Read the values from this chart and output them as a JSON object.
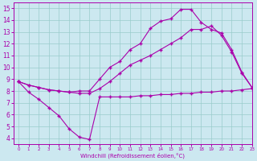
{
  "background_color": "#cce8f0",
  "line_color": "#aa00aa",
  "grid_color": "#99cccc",
  "xlabel": "Windchill (Refroidissement éolien,°C)",
  "xlim": [
    -0.5,
    23
  ],
  "ylim": [
    3.5,
    15.5
  ],
  "xticks": [
    0,
    1,
    2,
    3,
    4,
    5,
    6,
    7,
    8,
    9,
    10,
    11,
    12,
    13,
    14,
    15,
    16,
    17,
    18,
    19,
    20,
    21,
    22,
    23
  ],
  "yticks": [
    4,
    5,
    6,
    7,
    8,
    9,
    10,
    11,
    12,
    13,
    14,
    15
  ],
  "curve1_x": [
    0,
    1,
    2,
    3,
    4,
    5,
    6,
    7,
    8,
    9,
    10,
    11,
    12,
    13,
    14,
    15,
    16,
    17,
    18,
    19,
    20,
    21,
    22,
    23
  ],
  "curve1_y": [
    8.8,
    7.9,
    7.3,
    6.6,
    5.9,
    4.8,
    4.1,
    3.9,
    7.5,
    7.5,
    7.5,
    7.5,
    7.6,
    7.6,
    7.7,
    7.7,
    7.8,
    7.8,
    7.9,
    7.9,
    8.0,
    8.0,
    8.1,
    8.2
  ],
  "curve2_x": [
    0,
    1,
    2,
    3,
    4,
    5,
    6,
    7,
    8,
    9,
    10,
    11,
    12,
    13,
    14,
    15,
    16,
    17,
    18,
    19,
    20,
    21,
    22,
    23
  ],
  "curve2_y": [
    8.8,
    8.5,
    8.3,
    8.1,
    8.0,
    7.9,
    7.8,
    7.8,
    8.2,
    8.8,
    9.5,
    10.2,
    10.6,
    11.0,
    11.5,
    12.0,
    12.5,
    13.2,
    13.2,
    13.5,
    12.7,
    11.3,
    9.5,
    8.3
  ],
  "curve3_x": [
    0,
    1,
    2,
    3,
    4,
    5,
    6,
    7,
    8,
    9,
    10,
    11,
    12,
    13,
    14,
    15,
    16,
    17,
    18,
    19,
    20,
    21,
    22,
    23
  ],
  "curve3_y": [
    8.8,
    8.5,
    8.3,
    8.1,
    8.0,
    7.9,
    8.0,
    8.0,
    9.0,
    10.0,
    10.5,
    11.5,
    12.0,
    13.3,
    13.9,
    14.1,
    14.9,
    14.9,
    13.8,
    13.2,
    12.9,
    11.5,
    9.6,
    8.3
  ]
}
